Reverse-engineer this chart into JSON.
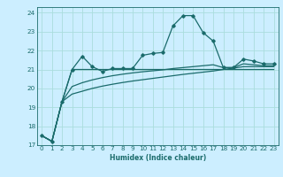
{
  "title": "",
  "xlabel": "Humidex (Indice chaleur)",
  "background_color": "#cceeff",
  "grid_color": "#aadddd",
  "line_color": "#1a6b6b",
  "xlim": [
    -0.5,
    23.5
  ],
  "ylim": [
    17,
    24.3
  ],
  "yticks": [
    17,
    18,
    19,
    20,
    21,
    22,
    23,
    24
  ],
  "xticks": [
    0,
    1,
    2,
    3,
    4,
    5,
    6,
    7,
    8,
    9,
    10,
    11,
    12,
    13,
    14,
    15,
    16,
    17,
    18,
    19,
    20,
    21,
    22,
    23
  ],
  "series1_x": [
    0,
    1,
    2,
    3,
    4,
    5,
    6,
    7,
    8,
    9,
    10,
    11,
    12,
    13,
    14,
    15,
    16,
    17,
    18,
    19,
    20,
    21,
    22,
    23
  ],
  "series1_y": [
    17.5,
    17.2,
    19.3,
    21.0,
    21.7,
    21.15,
    20.9,
    21.05,
    21.05,
    21.05,
    21.75,
    21.85,
    21.9,
    23.3,
    23.85,
    23.85,
    22.95,
    22.5,
    21.1,
    21.1,
    21.55,
    21.45,
    21.3,
    21.3
  ],
  "series2_x": [
    0,
    1,
    2,
    3,
    4,
    5,
    6,
    7,
    8,
    9,
    10,
    11,
    12,
    13,
    14,
    15,
    16,
    17,
    18,
    19,
    20,
    21,
    22,
    23
  ],
  "series2_y": [
    17.5,
    17.2,
    19.3,
    21.0,
    21.0,
    21.0,
    21.0,
    21.0,
    21.0,
    21.0,
    21.0,
    21.0,
    21.0,
    21.0,
    21.0,
    21.0,
    21.0,
    21.0,
    21.0,
    21.0,
    21.0,
    21.0,
    21.0,
    21.0
  ],
  "series3_x": [
    0,
    1,
    2,
    3,
    4,
    5,
    6,
    7,
    8,
    9,
    10,
    11,
    12,
    13,
    14,
    15,
    16,
    17,
    18,
    19,
    20,
    21,
    22,
    23
  ],
  "series3_y": [
    17.5,
    17.2,
    19.3,
    20.1,
    20.3,
    20.45,
    20.57,
    20.67,
    20.75,
    20.82,
    20.88,
    20.93,
    20.98,
    21.05,
    21.1,
    21.15,
    21.2,
    21.25,
    21.1,
    21.1,
    21.3,
    21.25,
    21.2,
    21.2
  ],
  "series4_x": [
    0,
    1,
    2,
    3,
    4,
    5,
    6,
    7,
    8,
    9,
    10,
    11,
    12,
    13,
    14,
    15,
    16,
    17,
    18,
    19,
    20,
    21,
    22,
    23
  ],
  "series4_y": [
    17.5,
    17.2,
    19.3,
    19.7,
    19.85,
    20.0,
    20.12,
    20.22,
    20.31,
    20.39,
    20.46,
    20.53,
    20.6,
    20.67,
    20.74,
    20.8,
    20.86,
    20.92,
    21.0,
    21.07,
    21.15,
    21.15,
    21.15,
    21.15
  ]
}
